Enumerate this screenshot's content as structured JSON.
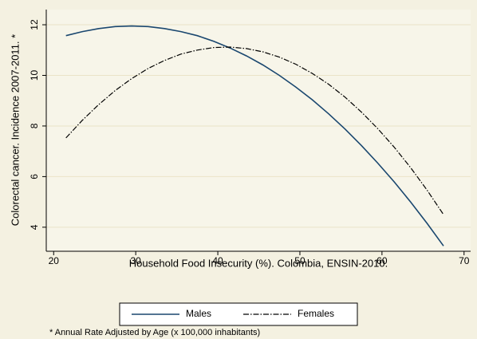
{
  "chart_data": {
    "type": "line",
    "x_label": "Household Food Insecurity (%). Colombia, ENSIN-2010.",
    "y_label": "Colorectal cancer. Incidence 2007-2011. *",
    "note": "* Annual Rate Adjusted by Age (x 100,000 inhabitants)",
    "x": [
      21.5,
      23.5,
      25.5,
      27.5,
      29.5,
      31.5,
      33.5,
      35.5,
      37.5,
      39.5,
      41.5,
      43.5,
      45.5,
      47.5,
      49.5,
      51.5,
      53.5,
      55.5,
      57.5,
      59.5,
      61.5,
      63.5,
      65.5,
      67.5
    ],
    "series": [
      {
        "name": "Males",
        "color": "#1a476f",
        "style": "solid",
        "values": [
          11.57,
          11.73,
          11.85,
          11.93,
          11.95,
          11.93,
          11.85,
          11.73,
          11.57,
          11.35,
          11.08,
          10.77,
          10.41,
          10.0,
          9.54,
          9.04,
          8.48,
          7.88,
          7.23,
          6.53,
          5.79,
          4.99,
          4.15,
          3.26
        ]
      },
      {
        "name": "Females",
        "color": "#000000",
        "style": "dashdot",
        "values": [
          7.53,
          8.23,
          8.85,
          9.4,
          9.87,
          10.27,
          10.59,
          10.84,
          11.0,
          11.1,
          11.12,
          11.06,
          10.93,
          10.72,
          10.44,
          10.08,
          9.65,
          9.14,
          8.55,
          7.89,
          7.16,
          6.35,
          5.46,
          4.5
        ]
      }
    ],
    "xlim": [
      19.1,
      70.8
    ],
    "xticks": [
      20,
      30,
      40,
      50,
      60,
      70
    ],
    "ylim": [
      3.05,
      12.6
    ],
    "yticks": [
      4,
      6,
      8,
      10,
      12
    ],
    "grid": true,
    "legend": "bottom"
  }
}
